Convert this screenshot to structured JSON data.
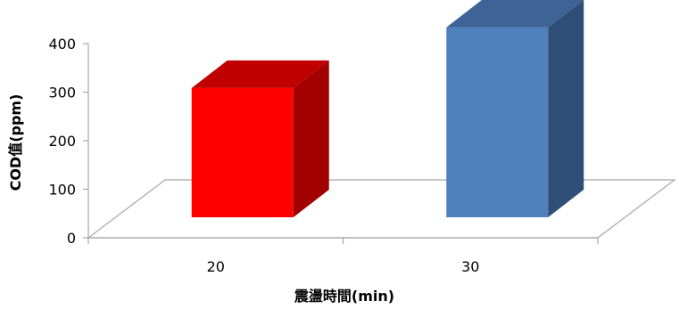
{
  "chart_data": {
    "type": "bar",
    "title": "",
    "xlabel": "震盪時間(min)",
    "ylabel": "COD值(ppm)",
    "categories": [
      "20",
      "30"
    ],
    "values": [
      270,
      395
    ],
    "ylim": [
      0,
      400
    ],
    "yticks": [
      "0",
      "100",
      "200",
      "300",
      "400"
    ],
    "grid": false,
    "legend": "none",
    "bar_colors": [
      {
        "front": "#ff0000",
        "side": "#a30000",
        "top": "#c00000"
      },
      {
        "front": "#4f81bd",
        "side": "#2f4f79",
        "top": "#3e6396"
      }
    ]
  }
}
